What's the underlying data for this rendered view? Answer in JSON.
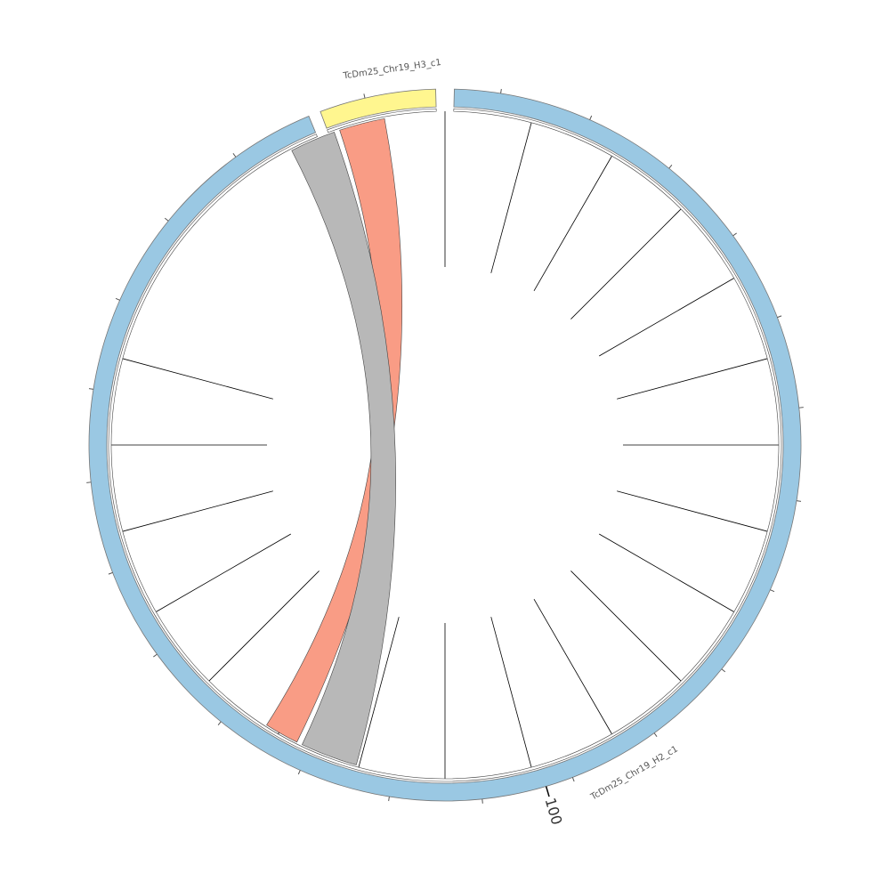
{
  "chart_data": {
    "type": "chord",
    "segments": [
      {
        "name": "TcDm25_Chr19_H2_c1",
        "color": "#9ac8e3",
        "start_deg": 1.5,
        "end_deg": 337.5
      },
      {
        "name": "TcDm25_Chr19_H3_c1",
        "color": "#fff68f",
        "start_deg": 339.5,
        "end_deg": 358.5
      }
    ],
    "axis_tick_labels": [
      {
        "label": "100",
        "angle_deg": 163.5
      }
    ],
    "ribbons": [
      {
        "color": "#f99c85",
        "source": [
          341.5,
          349.5
        ],
        "target": [
          206.5,
          212.5
        ]
      },
      {
        "color": "#b8b8b8",
        "source": [
          332.5,
          340.5
        ],
        "target": [
          195.5,
          205.5
        ]
      }
    ],
    "radial_lines": [
      0,
      15,
      30,
      45,
      60,
      75,
      90,
      105,
      120,
      135,
      150,
      165,
      180,
      195,
      210,
      225,
      240,
      255,
      270,
      285
    ]
  }
}
